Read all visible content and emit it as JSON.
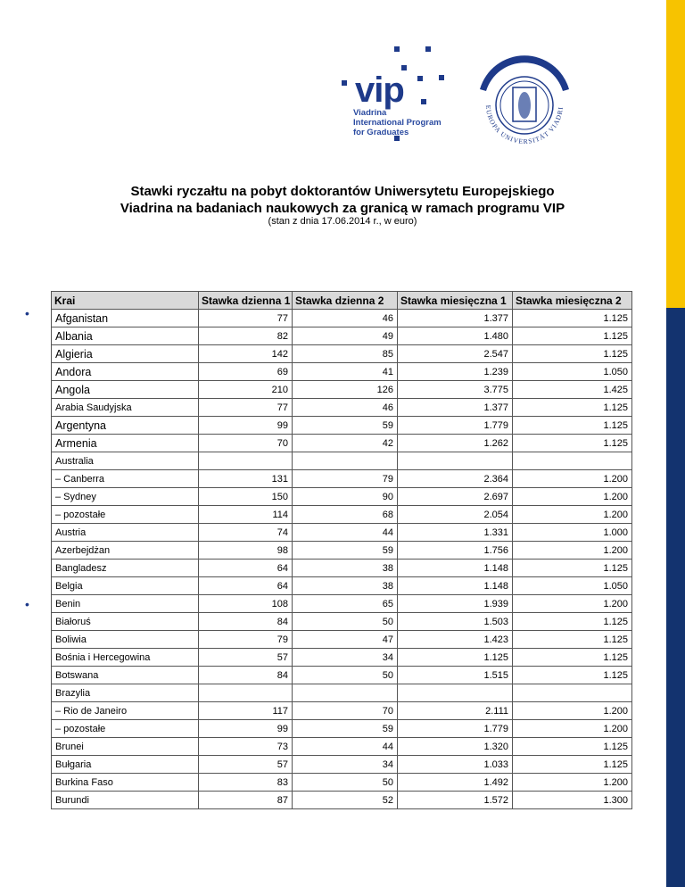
{
  "logo": {
    "vip_word": "vip",
    "vip_lines": [
      "Viadrina",
      "International Program",
      "for Graduates"
    ],
    "seal_text": "EUROPA UNIVERSITÄT VIADRINA"
  },
  "title_line1": "Stawki ryczałtu na pobyt doktorantów Uniwersytetu Europejskiego",
  "title_line2": "Viadrina na badaniach naukowych za granicą w ramach programu VIP",
  "subtitle": "(stan z dnia 17.06.2014 r., w euro)",
  "colors": {
    "yellow": "#f7c300",
    "blue": "#13336f"
  },
  "table": {
    "headers": [
      "Krai",
      "Stawka dzienna 1",
      "Stawka dzienna 2",
      "Stawka miesięczna 1",
      "Stawka miesięczna 2"
    ],
    "rows": [
      [
        "Afganistan",
        "77",
        "46",
        "1.377",
        "1.125"
      ],
      [
        "Albania",
        "82",
        "49",
        "1.480",
        "1.125"
      ],
      [
        "Algieria",
        "142",
        "85",
        "2.547",
        "1.125"
      ],
      [
        "Andora",
        "69",
        "41",
        "1.239",
        "1.050"
      ],
      [
        "Angola",
        "210",
        "126",
        "3.775",
        "1.425"
      ],
      [
        "Arabia Saudyjska",
        "77",
        "46",
        "1.377",
        "1.125"
      ],
      [
        "Argentyna",
        "99",
        "59",
        "1.779",
        "1.125"
      ],
      [
        "Armenia",
        "70",
        "42",
        "1.262",
        "1.125"
      ],
      [
        "Australia",
        "",
        "",
        "",
        ""
      ],
      [
        "– Canberra",
        "131",
        "79",
        "2.364",
        "1.200"
      ],
      [
        "– Sydney",
        "150",
        "90",
        "2.697",
        "1.200"
      ],
      [
        "– pozostałe",
        "114",
        "68",
        "2.054",
        "1.200"
      ],
      [
        "Austria",
        "74",
        "44",
        "1.331",
        "1.000"
      ],
      [
        "Azerbejdżan",
        "98",
        "59",
        "1.756",
        "1.200"
      ],
      [
        "Bangladesz",
        "64",
        "38",
        "1.148",
        "1.125"
      ],
      [
        "Belgia",
        "64",
        "38",
        "1.148",
        "1.050"
      ],
      [
        "Benin",
        "108",
        "65",
        "1.939",
        "1.200"
      ],
      [
        " Białoruś",
        "84",
        "50",
        "1.503",
        "1.125"
      ],
      [
        "Boliwia",
        "79",
        "47",
        "1.423",
        "1.125"
      ],
      [
        "Bośnia i Hercegowina",
        "57",
        "34",
        "1.125",
        "1.125"
      ],
      [
        "Botswana",
        "84",
        "50",
        "1.515",
        "1.125"
      ],
      [
        "Brazylia",
        "",
        "",
        "",
        ""
      ],
      [
        "– Rio de Janeiro",
        "117",
        "70",
        "2.111",
        "1.200"
      ],
      [
        "– pozostałe",
        "99",
        "59",
        "1.779",
        "1.200"
      ],
      [
        "Brunei",
        "73",
        "44",
        "1.320",
        "1.125"
      ],
      [
        "Bułgaria",
        "57",
        "34",
        "1.033",
        "1.125"
      ],
      [
        "Burkina Faso",
        "83",
        "50",
        "1.492",
        "1.200"
      ],
      [
        "Burundi",
        "87",
        "52",
        "1.572",
        "1.300"
      ]
    ]
  }
}
